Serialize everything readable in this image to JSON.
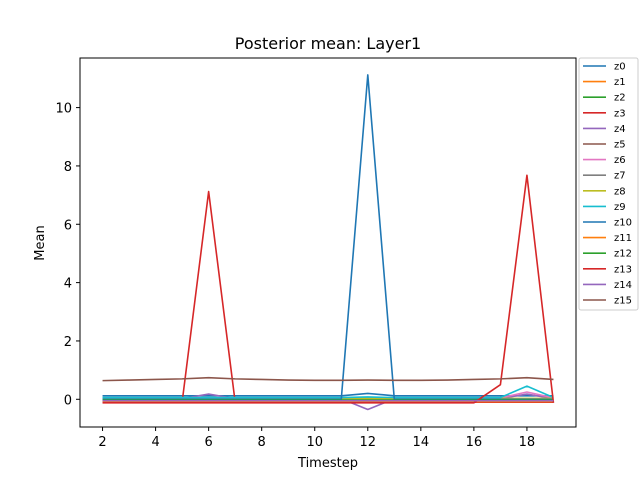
{
  "chart_data": {
    "type": "line",
    "title": "Posterior mean: Layer1",
    "xlabel": "Timestep",
    "ylabel": "Mean",
    "xlim": [
      1.15,
      19.85
    ],
    "ylim": [
      -0.95,
      11.7
    ],
    "xticks": [
      2,
      4,
      6,
      8,
      10,
      12,
      14,
      16,
      18
    ],
    "yticks": [
      0,
      2,
      4,
      6,
      8,
      10
    ],
    "grid": false,
    "legend_position": "outside-right",
    "x": [
      2,
      3,
      4,
      5,
      6,
      7,
      8,
      9,
      10,
      11,
      12,
      13,
      14,
      15,
      16,
      17,
      18,
      19
    ],
    "series": [
      {
        "name": "z0",
        "color": "#1f77b4",
        "values": [
          0.12,
          0.12,
          0.12,
          0.12,
          0.12,
          0.12,
          0.12,
          0.12,
          0.12,
          0.12,
          0.2,
          0.12,
          0.12,
          0.12,
          0.12,
          0.12,
          0.12,
          0.12
        ]
      },
      {
        "name": "z1",
        "color": "#ff7f0e",
        "values": [
          -0.02,
          -0.02,
          -0.02,
          -0.02,
          -0.02,
          -0.02,
          -0.02,
          -0.02,
          -0.02,
          -0.02,
          -0.06,
          -0.02,
          -0.02,
          -0.02,
          -0.02,
          -0.02,
          -0.02,
          -0.02
        ]
      },
      {
        "name": "z2",
        "color": "#2ca02c",
        "values": [
          -0.04,
          -0.04,
          -0.04,
          -0.04,
          -0.04,
          -0.04,
          -0.04,
          -0.04,
          -0.04,
          -0.04,
          -0.04,
          -0.04,
          -0.04,
          -0.04,
          -0.04,
          -0.04,
          -0.04,
          -0.04
        ]
      },
      {
        "name": "z3",
        "color": "#d62728",
        "values": [
          -0.1,
          -0.1,
          -0.1,
          -0.1,
          7.12,
          -0.1,
          -0.1,
          -0.1,
          -0.1,
          -0.1,
          -0.1,
          -0.1,
          -0.1,
          -0.1,
          -0.1,
          -0.1,
          -0.1,
          -0.1
        ]
      },
      {
        "name": "z4",
        "color": "#9467bd",
        "values": [
          0.02,
          0.02,
          0.02,
          0.02,
          0.18,
          0.02,
          0.02,
          0.02,
          0.02,
          0.02,
          -0.35,
          0.02,
          0.02,
          0.02,
          0.02,
          0.02,
          0.18,
          0.02
        ]
      },
      {
        "name": "z5",
        "color": "#8c564b",
        "values": [
          -0.06,
          -0.06,
          -0.06,
          -0.06,
          -0.06,
          -0.06,
          -0.06,
          -0.06,
          -0.06,
          -0.06,
          -0.06,
          -0.06,
          -0.06,
          -0.06,
          -0.06,
          -0.06,
          -0.06,
          -0.06
        ]
      },
      {
        "name": "z6",
        "color": "#e377c2",
        "values": [
          0.05,
          0.05,
          0.05,
          0.05,
          0.05,
          0.05,
          0.05,
          0.05,
          0.05,
          0.05,
          0.05,
          0.05,
          0.05,
          0.05,
          0.05,
          0.05,
          0.25,
          0.05
        ]
      },
      {
        "name": "z7",
        "color": "#7f7f7f",
        "values": [
          0.0,
          0.0,
          0.0,
          0.0,
          0.0,
          0.0,
          0.0,
          0.0,
          0.0,
          0.0,
          0.0,
          0.0,
          0.0,
          0.0,
          0.0,
          0.0,
          0.0,
          0.0
        ]
      },
      {
        "name": "z8",
        "color": "#bcbd22",
        "values": [
          0.03,
          0.03,
          0.03,
          0.03,
          0.03,
          0.03,
          0.03,
          0.03,
          0.03,
          0.03,
          0.03,
          0.03,
          0.03,
          0.03,
          0.03,
          0.03,
          0.03,
          0.03
        ]
      },
      {
        "name": "z9",
        "color": "#17becf",
        "values": [
          0.06,
          0.06,
          0.06,
          0.06,
          0.06,
          0.06,
          0.06,
          0.06,
          0.06,
          0.06,
          0.08,
          0.06,
          0.06,
          0.06,
          0.06,
          0.06,
          0.45,
          0.06
        ]
      },
      {
        "name": "z10",
        "color": "#1f77b4",
        "values": [
          0.0,
          0.0,
          0.0,
          0.0,
          0.0,
          0.0,
          0.0,
          0.0,
          0.0,
          0.0,
          11.12,
          0.0,
          0.0,
          0.0,
          0.0,
          0.0,
          0.0,
          0.0
        ]
      },
      {
        "name": "z11",
        "color": "#ff7f0e",
        "values": [
          -0.08,
          -0.08,
          -0.08,
          -0.08,
          -0.08,
          -0.08,
          -0.08,
          -0.08,
          -0.08,
          -0.08,
          -0.08,
          -0.08,
          -0.08,
          -0.08,
          -0.08,
          -0.08,
          -0.08,
          -0.08
        ]
      },
      {
        "name": "z12",
        "color": "#2ca02c",
        "values": [
          -0.03,
          -0.03,
          -0.03,
          -0.03,
          -0.03,
          -0.03,
          -0.03,
          -0.03,
          -0.03,
          -0.03,
          -0.03,
          -0.03,
          -0.03,
          -0.03,
          -0.03,
          -0.03,
          -0.03,
          -0.03
        ]
      },
      {
        "name": "z13",
        "color": "#d62728",
        "values": [
          -0.12,
          -0.12,
          -0.12,
          -0.12,
          -0.12,
          -0.12,
          -0.12,
          -0.12,
          -0.12,
          -0.12,
          -0.12,
          -0.12,
          -0.12,
          -0.12,
          -0.12,
          0.5,
          7.68,
          -0.12
        ]
      },
      {
        "name": "z14",
        "color": "#9467bd",
        "values": [
          -0.05,
          -0.05,
          -0.05,
          -0.05,
          -0.05,
          -0.05,
          -0.05,
          -0.05,
          -0.05,
          -0.05,
          -0.05,
          -0.05,
          -0.05,
          -0.05,
          -0.05,
          -0.05,
          -0.05,
          -0.05
        ]
      },
      {
        "name": "z15",
        "color": "#8c564b",
        "values": [
          0.64,
          0.66,
          0.68,
          0.7,
          0.74,
          0.7,
          0.68,
          0.66,
          0.65,
          0.65,
          0.66,
          0.65,
          0.65,
          0.66,
          0.68,
          0.7,
          0.74,
          0.68
        ]
      }
    ]
  }
}
